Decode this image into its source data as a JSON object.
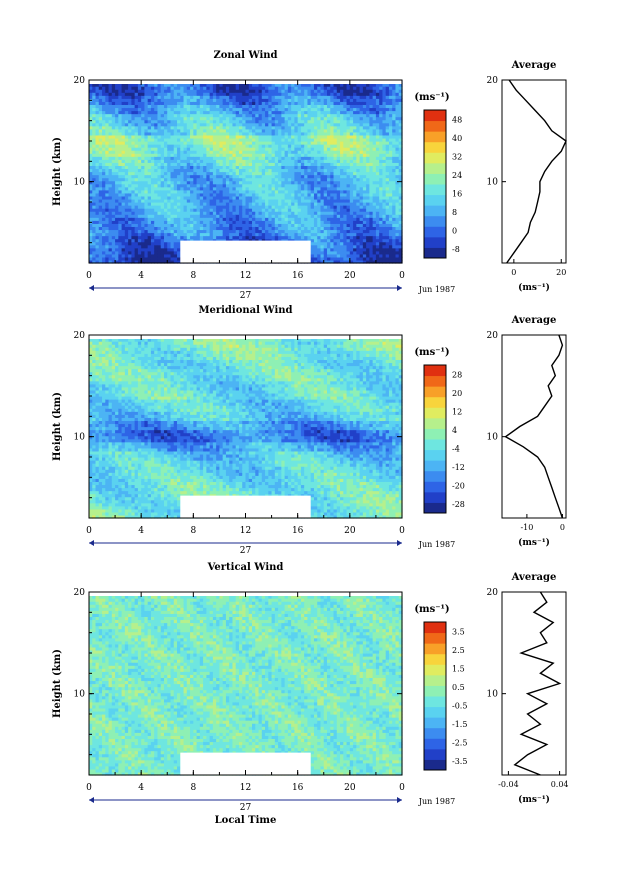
{
  "figure": {
    "date_label": "Jun 1987",
    "day_label": "27",
    "xlabel_bottom": "Local Time"
  },
  "chart_data": [
    {
      "type": "heatmap",
      "title": "Zonal Wind",
      "ylabel": "Height (km)",
      "x_ticks": [
        "0",
        "4",
        "8",
        "12",
        "16",
        "20",
        "0"
      ],
      "y_ticks": [
        "20",
        "10"
      ],
      "xlim": [
        0,
        24
      ],
      "ylim": [
        2,
        20
      ],
      "colorbar_unit": "(ms⁻¹)",
      "colorbar_ticks": [
        "48",
        "40",
        "32",
        "24",
        "16",
        "8",
        "0",
        "-8"
      ],
      "colorbar_range": [
        -8,
        48
      ],
      "colors": [
        "#1a2a8c",
        "#2140c8",
        "#2e64e6",
        "#3c8cf0",
        "#4cb4f4",
        "#5ad2f0",
        "#6ee6e0",
        "#8ef0b4",
        "#b6f08c",
        "#e0ec60",
        "#f8d43c",
        "#f8a028",
        "#f06818",
        "#e03010"
      ],
      "gap_x": [
        7,
        17
      ],
      "gap_y": [
        2,
        4.2
      ],
      "profile": {
        "title": "Average",
        "xlabel": "(ms⁻¹)",
        "x_ticks": [
          "0",
          "20"
        ],
        "y_ticks": [
          "20",
          "10"
        ],
        "xlim": [
          -5,
          22
        ],
        "heights": [
          2,
          3,
          4,
          5,
          6,
          7,
          8,
          9,
          10,
          11,
          12,
          13,
          14,
          15,
          16,
          17,
          18,
          19,
          20
        ],
        "values": [
          -3,
          0,
          3,
          6,
          7,
          9,
          10,
          11,
          11,
          13,
          16,
          20,
          22,
          16,
          13,
          9,
          5,
          1,
          -2
        ]
      }
    },
    {
      "type": "heatmap",
      "title": "Meridional Wind",
      "ylabel": "Height (km)",
      "x_ticks": [
        "0",
        "4",
        "8",
        "12",
        "16",
        "20",
        "0"
      ],
      "y_ticks": [
        "20",
        "10"
      ],
      "xlim": [
        0,
        24
      ],
      "ylim": [
        2,
        20
      ],
      "colorbar_unit": "(ms⁻¹)",
      "colorbar_ticks": [
        "28",
        "20",
        "12",
        "4",
        "-4",
        "-12",
        "-20",
        "-28"
      ],
      "colorbar_range": [
        -28,
        28
      ],
      "colors": [
        "#1a2a8c",
        "#2140c8",
        "#2e64e6",
        "#3c8cf0",
        "#4cb4f4",
        "#5ad2f0",
        "#6ee6e0",
        "#8ef0b4",
        "#b6f08c",
        "#e0ec60",
        "#f8d43c",
        "#f8a028",
        "#f06818",
        "#e03010"
      ],
      "gap_x": [
        7,
        17
      ],
      "gap_y": [
        2,
        4.2
      ],
      "profile": {
        "title": "Average",
        "xlabel": "(ms⁻¹)",
        "x_ticks": [
          "-10",
          "0"
        ],
        "y_ticks": [
          "20",
          "10"
        ],
        "xlim": [
          -17,
          1
        ],
        "heights": [
          2,
          3,
          4,
          5,
          6,
          7,
          8,
          9,
          10,
          11,
          12,
          13,
          14,
          15,
          16,
          17,
          18,
          19,
          20
        ],
        "values": [
          0,
          -1,
          -2,
          -3,
          -4,
          -5,
          -7,
          -11,
          -16,
          -12,
          -7,
          -5,
          -3,
          -4,
          -2,
          -3,
          -1,
          0,
          -1
        ]
      }
    },
    {
      "type": "heatmap",
      "title": "Vertical Wind",
      "ylabel": "Height (km)",
      "x_ticks": [
        "0",
        "4",
        "8",
        "12",
        "16",
        "20",
        "0"
      ],
      "y_ticks": [
        "20",
        "10"
      ],
      "xlim": [
        0,
        24
      ],
      "ylim": [
        2,
        20
      ],
      "colorbar_unit": "(ms⁻¹)",
      "colorbar_ticks": [
        "3.5",
        "2.5",
        "1.5",
        "0.5",
        "-0.5",
        "-1.5",
        "-2.5",
        "-3.5"
      ],
      "colorbar_range": [
        -3.5,
        3.5
      ],
      "colors": [
        "#1a2a8c",
        "#2140c8",
        "#2e64e6",
        "#3c8cf0",
        "#4cb4f4",
        "#5ad2f0",
        "#6ee6e0",
        "#8ef0b4",
        "#b6f08c",
        "#e0ec60",
        "#f8d43c",
        "#f8a028",
        "#f06818",
        "#e03010"
      ],
      "gap_x": [
        7,
        17
      ],
      "gap_y": [
        2,
        4.2
      ],
      "profile": {
        "title": "Average",
        "xlabel": "(ms⁻¹)",
        "x_ticks": [
          "-0.04",
          "0.04"
        ],
        "y_ticks": [
          "20",
          "10"
        ],
        "xlim": [
          -0.05,
          0.05
        ],
        "heights": [
          2,
          3,
          4,
          5,
          6,
          7,
          8,
          9,
          10,
          11,
          12,
          13,
          14,
          15,
          16,
          17,
          18,
          19,
          20
        ],
        "values": [
          0.01,
          -0.03,
          -0.01,
          0.02,
          -0.02,
          0.01,
          -0.01,
          0.02,
          -0.01,
          0.04,
          0.01,
          0.03,
          -0.02,
          0.02,
          0.01,
          0.03,
          0.0,
          0.02,
          0.01
        ]
      }
    }
  ]
}
